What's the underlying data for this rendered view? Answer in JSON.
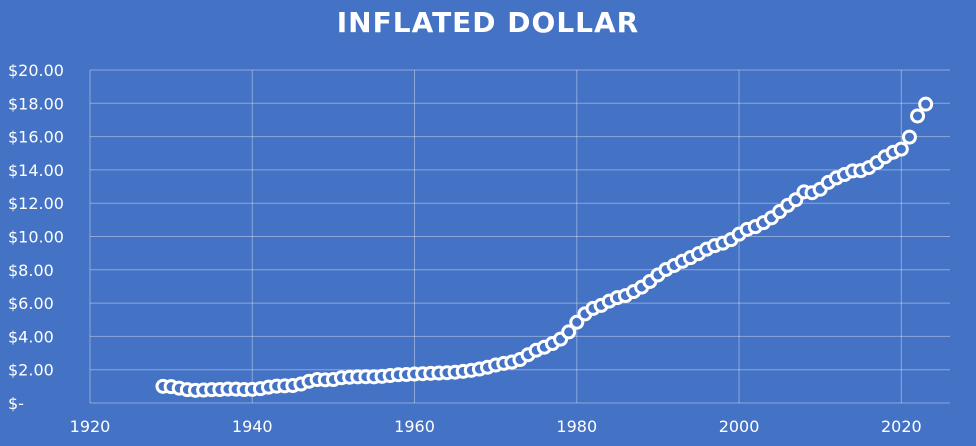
{
  "chart_data": {
    "type": "scatter",
    "title": "INFLATED DOLLAR",
    "xlabel": "",
    "ylabel": "",
    "xlim": [
      1920,
      2026
    ],
    "ylim": [
      0,
      20
    ],
    "x_ticks": [
      1920,
      1940,
      1960,
      1980,
      2000,
      2020
    ],
    "x_tick_labels": [
      "1920",
      "1940",
      "1960",
      "1980",
      "2000",
      "2020"
    ],
    "y_ticks": [
      0,
      2,
      4,
      6,
      8,
      10,
      12,
      14,
      16,
      18,
      20
    ],
    "y_tick_labels": [
      "$-",
      "$2.00",
      "$4.00",
      "$6.00",
      "$8.00",
      "$10.00",
      "$12.00",
      "$14.00",
      "$16.00",
      "$18.00",
      "$20.00"
    ],
    "grid": true,
    "colors": {
      "background": "#4472c4",
      "marker_stroke": "#ffffff",
      "marker_fill": "#4472c4",
      "text": "#ffffff"
    },
    "x": [
      1929,
      1930,
      1931,
      1932,
      1933,
      1934,
      1935,
      1936,
      1937,
      1938,
      1939,
      1940,
      1941,
      1942,
      1943,
      1944,
      1945,
      1946,
      1947,
      1948,
      1949,
      1950,
      1951,
      1952,
      1953,
      1954,
      1955,
      1956,
      1957,
      1958,
      1959,
      1960,
      1961,
      1962,
      1963,
      1964,
      1965,
      1966,
      1967,
      1968,
      1969,
      1970,
      1971,
      1972,
      1973,
      1974,
      1975,
      1976,
      1977,
      1978,
      1979,
      1980,
      1981,
      1982,
      1983,
      1984,
      1985,
      1986,
      1987,
      1988,
      1989,
      1990,
      1991,
      1992,
      1993,
      1994,
      1995,
      1996,
      1997,
      1998,
      1999,
      2000,
      2001,
      2002,
      2003,
      2004,
      2005,
      2006,
      2007,
      2008,
      2009,
      2010,
      2011,
      2012,
      2013,
      2014,
      2015,
      2016,
      2017,
      2018,
      2019,
      2020,
      2021,
      2022,
      2023
    ],
    "y": [
      1.0,
      0.98,
      0.89,
      0.8,
      0.76,
      0.78,
      0.8,
      0.81,
      0.84,
      0.83,
      0.81,
      0.82,
      0.86,
      0.95,
      1.01,
      1.03,
      1.05,
      1.14,
      1.31,
      1.41,
      1.39,
      1.41,
      1.52,
      1.55,
      1.57,
      1.58,
      1.57,
      1.6,
      1.65,
      1.7,
      1.71,
      1.74,
      1.76,
      1.78,
      1.8,
      1.82,
      1.85,
      1.9,
      1.96,
      2.04,
      2.15,
      2.28,
      2.38,
      2.46,
      2.61,
      2.9,
      3.17,
      3.35,
      3.57,
      3.84,
      4.27,
      4.85,
      5.35,
      5.68,
      5.86,
      6.12,
      6.33,
      6.45,
      6.69,
      6.96,
      7.3,
      7.69,
      8.02,
      8.26,
      8.51,
      8.73,
      8.97,
      9.24,
      9.45,
      9.6,
      9.81,
      10.14,
      10.43,
      10.59,
      10.83,
      11.12,
      11.5,
      11.87,
      12.21,
      12.68,
      12.63,
      12.84,
      13.25,
      13.52,
      13.72,
      13.94,
      13.96,
      14.14,
      14.44,
      14.79,
      15.06,
      15.25,
      15.97,
      17.24,
      17.95
    ]
  }
}
